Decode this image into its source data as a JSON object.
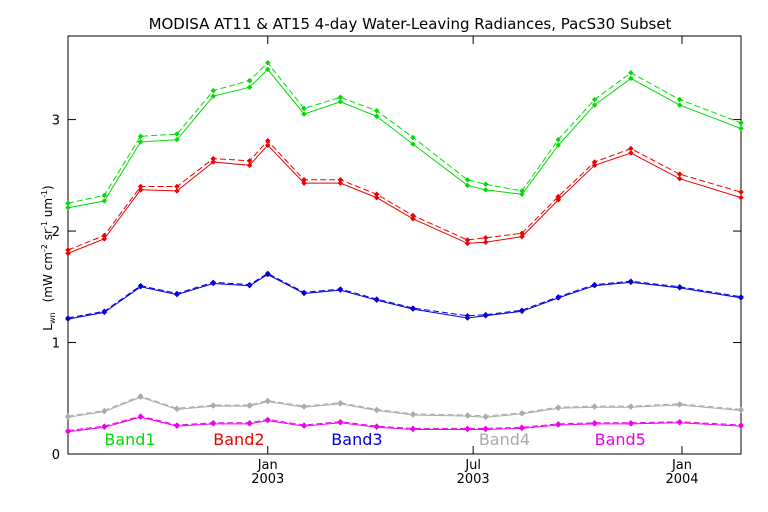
{
  "chart_data": {
    "type": "line",
    "title": "MODISA AT11 & AT15 4-day Water-Leaving Radiances, PacS30 Subset",
    "ylabel": "L_wn (mW cm^-2 sr^-1 um^-1)",
    "ylabel_parts": {
      "main": "L",
      "main_sub": "wn",
      "units_1": "(mW cm",
      "units_1_sup": "-2",
      "units_2": " sr",
      "units_2_sup": "-1",
      "units_3": " um",
      "units_3_sup": "-1",
      "units_4": ")"
    },
    "ylim": [
      0,
      3.75
    ],
    "yticks": [
      "0",
      "1",
      "2",
      "3"
    ],
    "xlim": [
      "2002-07-09",
      "2004-02-22"
    ],
    "xticks": [
      {
        "date": "2003-01-01",
        "month": "Jan",
        "year": "2003"
      },
      {
        "date": "2003-07-01",
        "month": "Jul",
        "year": "2003"
      },
      {
        "date": "2004-01-01",
        "month": "Jan",
        "year": "2004"
      }
    ],
    "x": [
      "2002-07-09",
      "2002-08-10",
      "2002-09-11",
      "2002-10-13",
      "2002-11-14",
      "2002-12-16",
      "2003-01-01",
      "2003-02-02",
      "2003-03-06",
      "2003-04-07",
      "2003-05-09",
      "2003-06-26",
      "2003-07-12",
      "2003-08-13",
      "2003-09-14",
      "2003-10-16",
      "2003-11-17",
      "2003-12-30",
      "2004-02-22"
    ],
    "series": [
      {
        "name": "Band1",
        "color": "#00dd00",
        "style": "solid",
        "values": [
          2.21,
          2.27,
          2.8,
          2.82,
          3.21,
          3.29,
          3.45,
          3.05,
          3.16,
          3.03,
          2.78,
          2.41,
          2.37,
          2.33,
          2.77,
          3.13,
          3.37,
          3.13,
          2.92
        ]
      },
      {
        "name": "Band1 (AT15)",
        "color": "#00dd00",
        "style": "dashed",
        "values": [
          2.25,
          2.32,
          2.85,
          2.87,
          3.26,
          3.35,
          3.51,
          3.1,
          3.2,
          3.08,
          2.84,
          2.46,
          2.42,
          2.36,
          2.82,
          3.18,
          3.42,
          3.18,
          2.97
        ]
      },
      {
        "name": "Band2",
        "color": "#ee0000",
        "style": "solid",
        "values": [
          1.8,
          1.93,
          2.37,
          2.36,
          2.62,
          2.59,
          2.77,
          2.43,
          2.43,
          2.3,
          2.11,
          1.89,
          1.9,
          1.95,
          2.28,
          2.59,
          2.7,
          2.47,
          2.3
        ]
      },
      {
        "name": "Band2 (AT15)",
        "color": "#ee0000",
        "style": "dashed",
        "values": [
          1.83,
          1.96,
          2.4,
          2.4,
          2.65,
          2.63,
          2.81,
          2.46,
          2.46,
          2.33,
          2.14,
          1.92,
          1.94,
          1.98,
          2.31,
          2.62,
          2.74,
          2.51,
          2.35
        ]
      },
      {
        "name": "Band3",
        "color": "#0000dd",
        "style": "solid",
        "values": [
          1.21,
          1.27,
          1.5,
          1.43,
          1.53,
          1.51,
          1.61,
          1.44,
          1.47,
          1.38,
          1.3,
          1.22,
          1.24,
          1.28,
          1.4,
          1.51,
          1.54,
          1.49,
          1.4
        ]
      },
      {
        "name": "Band3 (AT15)",
        "color": "#0000dd",
        "style": "dashed",
        "values": [
          1.22,
          1.28,
          1.51,
          1.44,
          1.54,
          1.52,
          1.62,
          1.45,
          1.48,
          1.39,
          1.31,
          1.24,
          1.25,
          1.29,
          1.41,
          1.52,
          1.55,
          1.5,
          1.41
        ]
      },
      {
        "name": "Band4",
        "color": "#aaaaaa",
        "style": "solid",
        "values": [
          0.33,
          0.38,
          0.51,
          0.4,
          0.43,
          0.43,
          0.47,
          0.42,
          0.45,
          0.39,
          0.35,
          0.34,
          0.33,
          0.36,
          0.41,
          0.42,
          0.42,
          0.44,
          0.39
        ]
      },
      {
        "name": "Band4 (AT15)",
        "color": "#aaaaaa",
        "style": "dashed",
        "values": [
          0.34,
          0.39,
          0.52,
          0.41,
          0.44,
          0.44,
          0.48,
          0.43,
          0.46,
          0.4,
          0.36,
          0.35,
          0.34,
          0.37,
          0.42,
          0.43,
          0.43,
          0.45,
          0.4
        ]
      },
      {
        "name": "Band5",
        "color": "#ee00ee",
        "style": "solid",
        "values": [
          0.2,
          0.24,
          0.33,
          0.25,
          0.27,
          0.27,
          0.3,
          0.25,
          0.28,
          0.24,
          0.22,
          0.22,
          0.22,
          0.23,
          0.26,
          0.27,
          0.27,
          0.28,
          0.25
        ]
      },
      {
        "name": "Band5 (AT15)",
        "color": "#ee00ee",
        "style": "dashed",
        "values": [
          0.21,
          0.25,
          0.34,
          0.26,
          0.28,
          0.28,
          0.31,
          0.26,
          0.29,
          0.25,
          0.23,
          0.23,
          0.23,
          0.24,
          0.27,
          0.28,
          0.28,
          0.29,
          0.26
        ]
      }
    ],
    "legend": [
      {
        "label": "Band1",
        "color": "#00dd00",
        "at": "2002-08-10"
      },
      {
        "label": "Band2",
        "color": "#ee0000",
        "at": "2002-11-14"
      },
      {
        "label": "Band3",
        "color": "#0000dd",
        "at": "2003-02-26"
      },
      {
        "label": "Band4",
        "color": "#aaaaaa",
        "at": "2003-07-06"
      },
      {
        "label": "Band5",
        "color": "#ee00ee",
        "at": "2003-10-16"
      }
    ],
    "legend_value_level": 0.08,
    "grid": false
  }
}
